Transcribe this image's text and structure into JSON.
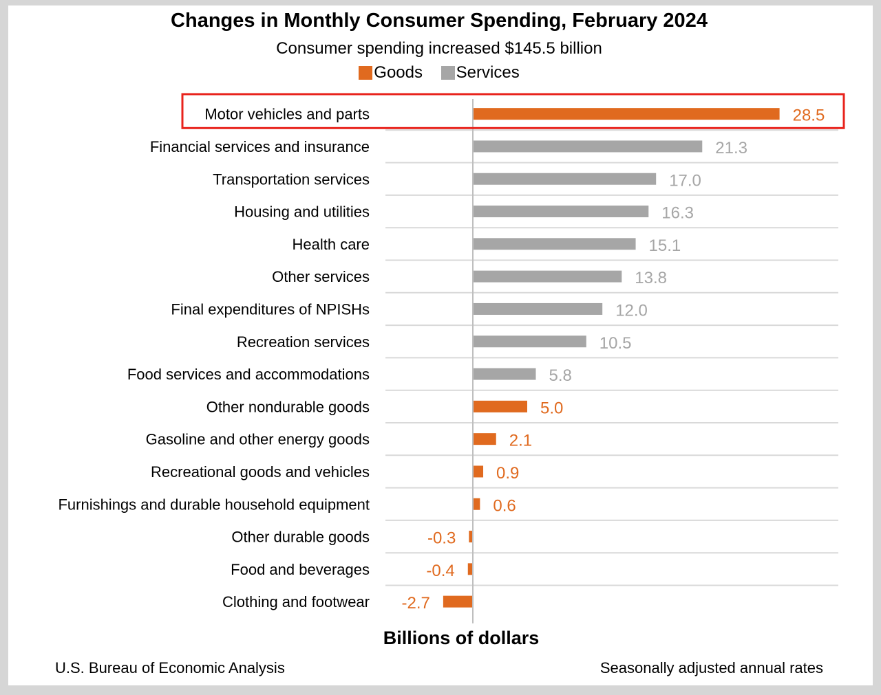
{
  "colors": {
    "goods": "#e06a1f",
    "services": "#a6a6a6",
    "grid": "#d9d9d9",
    "axis": "#bfbfbf",
    "highlight": "#e8231c"
  },
  "footer": {
    "source": "U.S. Bureau of Economic Analysis",
    "note": "Seasonally adjusted annual rates"
  },
  "chart_data": {
    "type": "bar",
    "orientation": "horizontal",
    "title": "Changes in Monthly Consumer Spending, February 2024",
    "subtitle": "Consumer spending increased $145.5 billion",
    "xlabel": "Billions of dollars",
    "ylabel": "",
    "legend": [
      {
        "name": "Goods",
        "key": "goods"
      },
      {
        "name": "Services",
        "key": "services"
      }
    ],
    "legend_position": "top-center",
    "grid": true,
    "highlighted_category": "Motor vehicles and parts",
    "categories": [
      "Motor vehicles and parts",
      "Financial services and insurance",
      "Transportation services",
      "Housing and utilities",
      "Health care",
      "Other services",
      "Final expenditures of NPISHs",
      "Recreation services",
      "Food services and accommodations",
      "Other nondurable goods",
      "Gasoline and other energy goods",
      "Recreational goods and vehicles",
      "Furnishings and durable household equipment",
      "Other durable goods",
      "Food and beverages",
      "Clothing and footwear"
    ],
    "values": [
      28.5,
      21.3,
      17.0,
      16.3,
      15.1,
      13.8,
      12.0,
      10.5,
      5.8,
      5.0,
      2.1,
      0.9,
      0.6,
      -0.3,
      -0.4,
      -2.7
    ],
    "value_labels": [
      "28.5",
      "21.3",
      "17.0",
      "16.3",
      "15.1",
      "13.8",
      "12.0",
      "10.5",
      "5.8",
      "5.0",
      "2.1",
      "0.9",
      "0.6",
      "-0.3",
      "-0.4",
      "-2.7"
    ],
    "series_type": [
      "goods",
      "services",
      "services",
      "services",
      "services",
      "services",
      "services",
      "services",
      "services",
      "goods",
      "goods",
      "goods",
      "goods",
      "goods",
      "goods",
      "goods"
    ]
  }
}
